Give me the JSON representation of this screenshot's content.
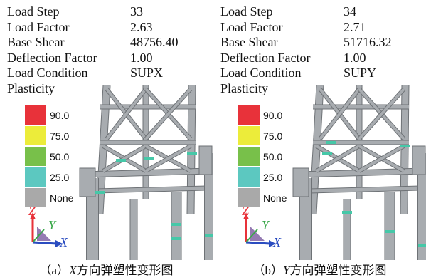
{
  "panels": [
    {
      "info": {
        "load_step_label": "Load Step",
        "load_step": "33",
        "load_factor_label": "Load Factor",
        "load_factor": "2.63",
        "base_shear_label": "Base Shear",
        "base_shear": "48756.40",
        "deflection_label": "Deflection Factor",
        "deflection": "1.00",
        "load_condition_label": "Load Condition",
        "load_condition": "SUPX",
        "plasticity_label": "Plasticity"
      },
      "caption_prefix": "（a）",
      "caption_axis": "X",
      "caption_text": "方向弹塑性变形图"
    },
    {
      "info": {
        "load_step_label": "Load Step",
        "load_step": "34",
        "load_factor_label": "Load Factor",
        "load_factor": "2.71",
        "base_shear_label": "Base Shear",
        "base_shear": "51716.32",
        "deflection_label": "Deflection Factor",
        "deflection": "1.00",
        "load_condition_label": "Load Condition",
        "load_condition": "SUPY",
        "plasticity_label": "Plasticity"
      },
      "caption_prefix": "（b）",
      "caption_axis": "Y",
      "caption_text": "方向弹塑性变形图"
    }
  ],
  "legend": [
    {
      "label": "90.0",
      "color": "#e8323a"
    },
    {
      "label": "75.0",
      "color": "#ecec3a"
    },
    {
      "label": "50.0",
      "color": "#78c04a"
    },
    {
      "label": "25.0",
      "color": "#5cc8c0"
    },
    {
      "label": "None",
      "color": "#a9a9a9"
    }
  ],
  "axes": {
    "z": "Z",
    "y": "Y",
    "x": "X",
    "z_color": "#e8323a",
    "y_color": "#3aa84a",
    "x_color": "#2a4cc0"
  },
  "structure": {
    "member_color": "#a8acb0",
    "dark_color": "#6e7276",
    "plastic_color": "#46c8a8"
  }
}
